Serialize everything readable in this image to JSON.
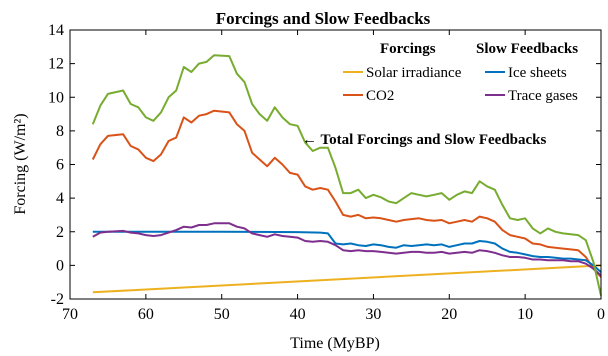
{
  "chart_data": {
    "type": "line",
    "title": "Forcings and Slow Feedbacks",
    "xlabel": "Time (MyBP)",
    "ylabel": "Forcing (W/m²)",
    "xlim": [
      70,
      0
    ],
    "ylim": [
      -2,
      14
    ],
    "x_ticks": [
      70,
      60,
      50,
      40,
      30,
      20,
      10,
      0
    ],
    "y_ticks": [
      -2,
      0,
      2,
      4,
      6,
      8,
      10,
      12,
      14
    ],
    "grid": false,
    "legend": {
      "placement": "top-right",
      "group_titles": [
        "Forcings",
        "Slow Feedbacks"
      ]
    },
    "annotation": "← Total Forcings and Slow Feedbacks",
    "series": [
      {
        "name": "Solar irradiance",
        "group": "Forcings",
        "color": "#EDB120",
        "points": [
          [
            67,
            -1.6
          ],
          [
            0,
            0.0
          ]
        ]
      },
      {
        "name": "CO2",
        "group": "Forcings",
        "color": "#D95319",
        "points": [
          [
            67,
            6.3
          ],
          [
            66,
            7.2
          ],
          [
            65,
            7.7
          ],
          [
            63,
            7.8
          ],
          [
            62,
            7.1
          ],
          [
            61,
            6.9
          ],
          [
            60,
            6.4
          ],
          [
            59,
            6.2
          ],
          [
            58,
            6.6
          ],
          [
            57,
            7.4
          ],
          [
            56,
            7.6
          ],
          [
            55,
            8.8
          ],
          [
            54,
            8.5
          ],
          [
            53,
            8.9
          ],
          [
            52,
            9.0
          ],
          [
            51,
            9.2
          ],
          [
            49,
            9.1
          ],
          [
            48,
            8.4
          ],
          [
            47,
            8.0
          ],
          [
            46,
            6.7
          ],
          [
            45,
            6.3
          ],
          [
            44,
            5.9
          ],
          [
            43,
            6.4
          ],
          [
            42,
            6.0
          ],
          [
            41,
            5.5
          ],
          [
            40,
            5.4
          ],
          [
            39,
            4.7
          ],
          [
            38,
            4.5
          ],
          [
            37,
            4.6
          ],
          [
            36,
            4.5
          ],
          [
            35,
            3.8
          ],
          [
            34,
            3.0
          ],
          [
            33,
            2.9
          ],
          [
            32,
            3.0
          ],
          [
            31,
            2.8
          ],
          [
            30,
            2.85
          ],
          [
            29,
            2.8
          ],
          [
            28,
            2.7
          ],
          [
            27,
            2.6
          ],
          [
            26,
            2.7
          ],
          [
            25,
            2.75
          ],
          [
            24,
            2.8
          ],
          [
            23,
            2.7
          ],
          [
            22,
            2.65
          ],
          [
            21,
            2.7
          ],
          [
            20,
            2.5
          ],
          [
            19,
            2.6
          ],
          [
            18,
            2.7
          ],
          [
            17,
            2.6
          ],
          [
            16,
            2.9
          ],
          [
            15,
            2.8
          ],
          [
            14,
            2.6
          ],
          [
            13,
            2.1
          ],
          [
            12,
            1.8
          ],
          [
            11,
            1.7
          ],
          [
            10,
            1.6
          ],
          [
            9,
            1.3
          ],
          [
            8,
            1.25
          ],
          [
            7,
            1.1
          ],
          [
            6,
            1.05
          ],
          [
            5,
            1.0
          ],
          [
            4,
            0.95
          ],
          [
            3,
            0.9
          ],
          [
            2,
            0.5
          ],
          [
            1,
            -0.2
          ],
          [
            0,
            -0.7
          ]
        ]
      },
      {
        "name": "Ice sheets",
        "group": "Slow Feedbacks",
        "color": "#0072BD",
        "points": [
          [
            67,
            2.0
          ],
          [
            60,
            2.0
          ],
          [
            50,
            2.0
          ],
          [
            40,
            1.98
          ],
          [
            37,
            1.95
          ],
          [
            36,
            1.9
          ],
          [
            35,
            1.3
          ],
          [
            34,
            1.25
          ],
          [
            33,
            1.3
          ],
          [
            32,
            1.2
          ],
          [
            31,
            1.15
          ],
          [
            30,
            1.25
          ],
          [
            29,
            1.2
          ],
          [
            28,
            1.1
          ],
          [
            27,
            1.05
          ],
          [
            26,
            1.2
          ],
          [
            25,
            1.15
          ],
          [
            24,
            1.2
          ],
          [
            23,
            1.25
          ],
          [
            22,
            1.2
          ],
          [
            21,
            1.25
          ],
          [
            20,
            1.1
          ],
          [
            19,
            1.2
          ],
          [
            18,
            1.3
          ],
          [
            17,
            1.3
          ],
          [
            16,
            1.45
          ],
          [
            15,
            1.4
          ],
          [
            14,
            1.3
          ],
          [
            13,
            1.0
          ],
          [
            12,
            0.8
          ],
          [
            11,
            0.75
          ],
          [
            10,
            0.65
          ],
          [
            9,
            0.55
          ],
          [
            8,
            0.5
          ],
          [
            7,
            0.5
          ],
          [
            6,
            0.45
          ],
          [
            5,
            0.4
          ],
          [
            4,
            0.4
          ],
          [
            3,
            0.35
          ],
          [
            2,
            0.3
          ],
          [
            1,
            0.0
          ],
          [
            0,
            -0.4
          ]
        ]
      },
      {
        "name": "Trace gases",
        "group": "Slow Feedbacks",
        "color": "#7E2F8E",
        "points": [
          [
            67,
            1.7
          ],
          [
            66,
            1.95
          ],
          [
            65,
            2.0
          ],
          [
            63,
            2.05
          ],
          [
            62,
            1.95
          ],
          [
            61,
            1.9
          ],
          [
            60,
            1.8
          ],
          [
            59,
            1.75
          ],
          [
            58,
            1.8
          ],
          [
            57,
            1.95
          ],
          [
            56,
            2.1
          ],
          [
            55,
            2.3
          ],
          [
            54,
            2.25
          ],
          [
            53,
            2.4
          ],
          [
            52,
            2.4
          ],
          [
            51,
            2.5
          ],
          [
            49,
            2.5
          ],
          [
            48,
            2.3
          ],
          [
            47,
            2.2
          ],
          [
            46,
            1.9
          ],
          [
            45,
            1.8
          ],
          [
            44,
            1.7
          ],
          [
            43,
            1.85
          ],
          [
            42,
            1.75
          ],
          [
            41,
            1.7
          ],
          [
            40,
            1.65
          ],
          [
            39,
            1.45
          ],
          [
            38,
            1.4
          ],
          [
            37,
            1.45
          ],
          [
            36,
            1.4
          ],
          [
            35,
            1.2
          ],
          [
            34,
            0.9
          ],
          [
            33,
            0.85
          ],
          [
            32,
            0.9
          ],
          [
            31,
            0.85
          ],
          [
            30,
            0.85
          ],
          [
            29,
            0.8
          ],
          [
            28,
            0.75
          ],
          [
            27,
            0.7
          ],
          [
            26,
            0.75
          ],
          [
            25,
            0.8
          ],
          [
            24,
            0.8
          ],
          [
            23,
            0.75
          ],
          [
            22,
            0.75
          ],
          [
            21,
            0.8
          ],
          [
            20,
            0.7
          ],
          [
            19,
            0.75
          ],
          [
            18,
            0.8
          ],
          [
            17,
            0.75
          ],
          [
            16,
            0.9
          ],
          [
            15,
            0.85
          ],
          [
            14,
            0.75
          ],
          [
            13,
            0.6
          ],
          [
            12,
            0.5
          ],
          [
            11,
            0.5
          ],
          [
            10,
            0.45
          ],
          [
            9,
            0.35
          ],
          [
            8,
            0.35
          ],
          [
            7,
            0.3
          ],
          [
            6,
            0.3
          ],
          [
            5,
            0.3
          ],
          [
            4,
            0.25
          ],
          [
            3,
            0.25
          ],
          [
            2,
            0.1
          ],
          [
            1,
            -0.2
          ],
          [
            0,
            -0.6
          ]
        ]
      },
      {
        "name": "Total Forcings and Slow Feedbacks",
        "group": "Total",
        "color": "#77AC30",
        "points": [
          [
            67,
            8.4
          ],
          [
            66,
            9.5
          ],
          [
            65,
            10.2
          ],
          [
            63,
            10.4
          ],
          [
            62,
            9.6
          ],
          [
            61,
            9.4
          ],
          [
            60,
            8.8
          ],
          [
            59,
            8.6
          ],
          [
            58,
            9.1
          ],
          [
            57,
            10.0
          ],
          [
            56,
            10.4
          ],
          [
            55,
            11.8
          ],
          [
            54,
            11.5
          ],
          [
            53,
            12.0
          ],
          [
            52,
            12.1
          ],
          [
            51,
            12.5
          ],
          [
            49,
            12.45
          ],
          [
            48,
            11.4
          ],
          [
            47,
            10.9
          ],
          [
            46,
            9.6
          ],
          [
            45,
            9.0
          ],
          [
            44,
            8.6
          ],
          [
            43,
            9.4
          ],
          [
            42,
            8.8
          ],
          [
            41,
            8.4
          ],
          [
            40,
            8.3
          ],
          [
            39,
            7.3
          ],
          [
            38,
            6.8
          ],
          [
            37,
            7.0
          ],
          [
            36,
            7.0
          ],
          [
            35,
            5.8
          ],
          [
            34,
            4.3
          ],
          [
            33,
            4.3
          ],
          [
            32,
            4.5
          ],
          [
            31,
            4.0
          ],
          [
            30,
            4.2
          ],
          [
            29,
            4.05
          ],
          [
            28,
            3.8
          ],
          [
            27,
            3.7
          ],
          [
            26,
            4.0
          ],
          [
            25,
            4.3
          ],
          [
            24,
            4.2
          ],
          [
            23,
            4.1
          ],
          [
            22,
            4.2
          ],
          [
            21,
            4.3
          ],
          [
            20,
            3.9
          ],
          [
            19,
            4.2
          ],
          [
            18,
            4.4
          ],
          [
            17,
            4.3
          ],
          [
            16,
            5.0
          ],
          [
            15,
            4.7
          ],
          [
            14,
            4.5
          ],
          [
            13,
            3.6
          ],
          [
            12,
            2.8
          ],
          [
            11,
            2.7
          ],
          [
            10,
            2.8
          ],
          [
            9,
            2.2
          ],
          [
            8,
            1.9
          ],
          [
            7,
            2.2
          ],
          [
            6,
            2.0
          ],
          [
            5,
            1.9
          ],
          [
            4,
            1.85
          ],
          [
            3,
            1.8
          ],
          [
            2,
            1.5
          ],
          [
            1,
            0.2
          ],
          [
            0,
            -1.8
          ]
        ]
      }
    ]
  }
}
